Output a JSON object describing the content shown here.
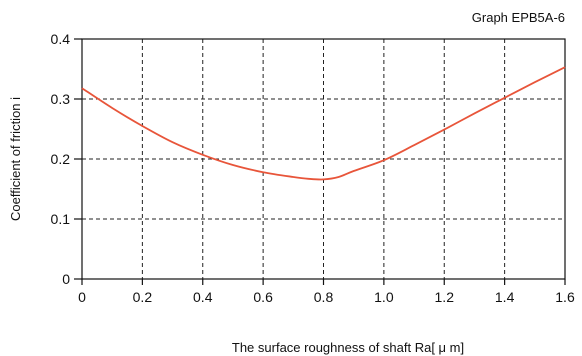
{
  "chart_data": {
    "type": "line",
    "title": "Graph EPB5A-6",
    "xlabel": "The surface roughness of shaft  Ra[ μ m]",
    "ylabel": "Coefficient of friction i",
    "xlim": [
      0,
      1.6
    ],
    "ylim": [
      0,
      0.4
    ],
    "x_ticks": [
      "0",
      "0.2",
      "0.4",
      "0.6",
      "0.8",
      "1.0",
      "1.2",
      "1.4",
      "1.6"
    ],
    "y_ticks": [
      "0",
      "0.1",
      "0.2",
      "0.3",
      "0.4"
    ],
    "grid": "dashed",
    "series": [
      {
        "color": "#e8553a",
        "x": [
          0,
          0.1,
          0.2,
          0.3,
          0.4,
          0.5,
          0.6,
          0.7,
          0.75,
          0.8,
          0.85,
          0.9,
          1.0,
          1.1,
          1.2,
          1.3,
          1.4,
          1.5,
          1.6
        ],
        "y": [
          0.318,
          0.285,
          0.255,
          0.228,
          0.207,
          0.19,
          0.178,
          0.17,
          0.167,
          0.166,
          0.17,
          0.18,
          0.198,
          0.223,
          0.249,
          0.276,
          0.302,
          0.328,
          0.353
        ]
      }
    ]
  }
}
